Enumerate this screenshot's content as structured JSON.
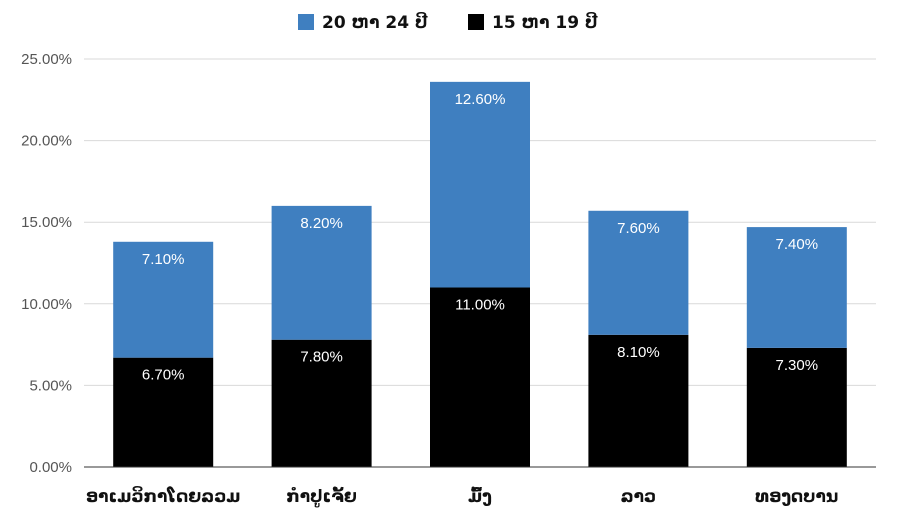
{
  "chart_data": {
    "type": "bar",
    "stacked": true,
    "title": "",
    "xlabel": "",
    "ylabel": "",
    "categories": [
      "ອາເມວິກາໂດຍລວມ",
      "ກຳປູເຈັ້ຍ",
      "ມົ້ງ",
      "ລາວ",
      "ທອງດບານ"
    ],
    "series": [
      {
        "name": "15 ຫາ 19 ປີ",
        "color": "#000000",
        "values": [
          6.7,
          7.8,
          11.0,
          8.1,
          7.3
        ],
        "labels": [
          "6.70%",
          "7.80%",
          "11.00%",
          "8.10%",
          "7.30%"
        ]
      },
      {
        "name": "20 ຫາ 24 ປີ",
        "color": "#3f7fc0",
        "values": [
          7.1,
          8.2,
          12.6,
          7.6,
          7.4
        ],
        "labels": [
          "7.10%",
          "8.20%",
          "12.60%",
          "7.60%",
          "7.40%"
        ]
      }
    ],
    "ylim": [
      0,
      25
    ],
    "yticks": [
      0,
      5,
      10,
      15,
      20,
      25
    ],
    "ytick_labels": [
      "0.00%",
      "5.00%",
      "10.00%",
      "15.00%",
      "20.00%",
      "25.00%"
    ],
    "grid": true,
    "legend": {
      "placement": "top-center",
      "order": [
        "20 ຫາ 24 ປີ",
        "15 ຫາ 19 ປີ"
      ]
    }
  }
}
